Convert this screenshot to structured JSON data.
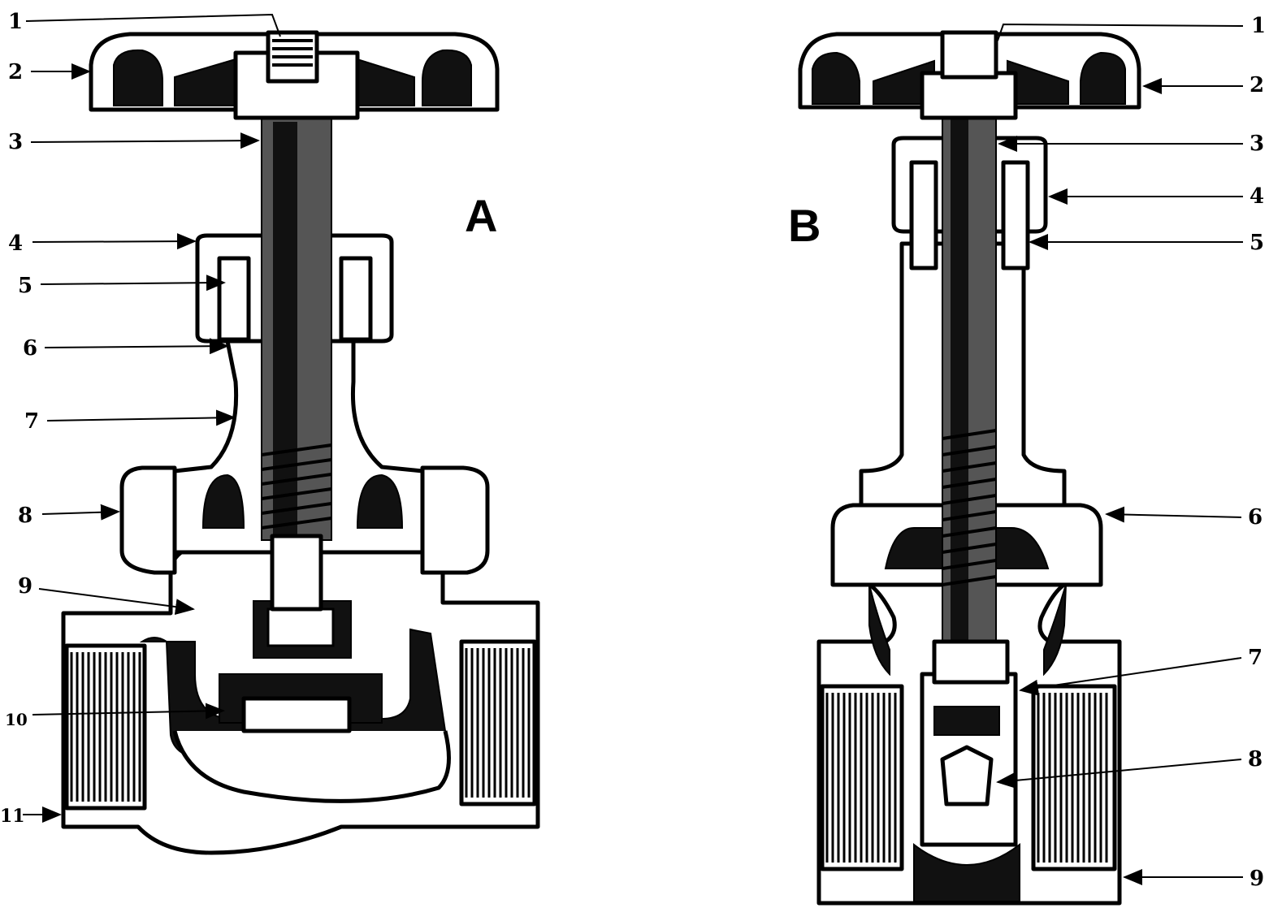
{
  "diagram_a": {
    "panel_label": "A",
    "callouts": [
      "1",
      "2",
      "3",
      "4",
      "5",
      "6",
      "7",
      "8",
      "9",
      "10",
      "11"
    ]
  },
  "diagram_b": {
    "panel_label": "B",
    "callouts": [
      "1",
      "2",
      "3",
      "4",
      "5",
      "6",
      "7",
      "8",
      "9"
    ]
  }
}
